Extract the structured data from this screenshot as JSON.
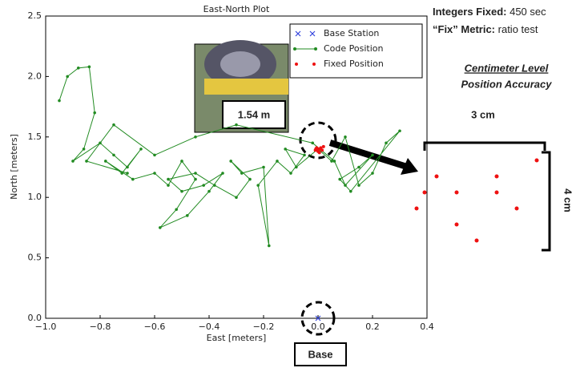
{
  "chart_data": {
    "type": "scatter",
    "title": "East-North Plot",
    "xlabel": "East [meters]",
    "ylabel": "North [meters]",
    "xlim": [
      -1.0,
      0.4
    ],
    "ylim": [
      0.0,
      2.5
    ],
    "xticks": [
      {
        "value": -1.0,
        "label": "−1.0"
      },
      {
        "value": -0.8,
        "label": "−0.8"
      },
      {
        "value": -0.6,
        "label": "−0.6"
      },
      {
        "value": -0.4,
        "label": "−0.4"
      },
      {
        "value": -0.2,
        "label": "−0.2"
      },
      {
        "value": 0.0,
        "label": "0.0"
      },
      0.2,
      0.4
    ],
    "yticks": [
      {
        "value": 0.0,
        "label": "0.0"
      },
      0.5,
      {
        "value": 1.0,
        "label": "1.0"
      },
      1.5,
      {
        "value": 2.0,
        "label": "2.0"
      },
      2.5
    ],
    "legend": "upper right",
    "series": [
      {
        "name": "Base Station",
        "color": "#3344dd",
        "marker": "x",
        "x": [
          0.0
        ],
        "y": [
          0.0
        ]
      },
      {
        "name": "Code Position",
        "color": "#228b22",
        "marker": "line",
        "x": [
          -0.95,
          -0.92,
          -0.88,
          -0.84,
          -0.82,
          -0.86,
          -0.9,
          -0.8,
          -0.75,
          -0.7,
          -0.65,
          -0.72,
          -0.78,
          -0.68,
          -0.6,
          -0.55,
          -0.5,
          -0.45,
          -0.52,
          -0.58,
          -0.48,
          -0.4,
          -0.35,
          -0.42,
          -0.5,
          -0.55,
          -0.45,
          -0.38,
          -0.3,
          -0.25,
          -0.32,
          -0.28,
          -0.2,
          -0.18,
          -0.22,
          -0.15,
          -0.1,
          -0.05,
          -0.12,
          -0.08,
          0.0,
          0.05,
          0.1,
          0.15,
          0.2,
          0.25,
          0.3,
          0.12,
          0.08,
          0.15,
          0.2,
          0.1,
          0.06,
          -0.02,
          -0.3,
          -0.45,
          -0.6,
          -0.75,
          -0.85,
          -0.7
        ],
        "y": [
          1.8,
          2.0,
          2.07,
          2.08,
          1.7,
          1.4,
          1.3,
          1.45,
          1.35,
          1.25,
          1.4,
          1.2,
          1.3,
          1.15,
          1.2,
          1.1,
          1.3,
          1.15,
          0.9,
          0.75,
          0.85,
          1.05,
          1.2,
          1.1,
          1.05,
          1.15,
          1.2,
          1.1,
          1.0,
          1.15,
          1.3,
          1.2,
          1.25,
          0.6,
          1.1,
          1.3,
          1.2,
          1.35,
          1.4,
          1.25,
          1.4,
          1.3,
          1.5,
          1.1,
          1.2,
          1.45,
          1.55,
          1.05,
          1.15,
          1.25,
          1.35,
          1.1,
          1.3,
          1.45,
          1.6,
          1.5,
          1.35,
          1.6,
          1.3,
          1.2
        ]
      },
      {
        "name": "Fixed Position",
        "color": "#ee1111",
        "marker": "dot",
        "x": [
          0.0,
          0.01,
          -0.01,
          0.02,
          0.0,
          0.01,
          -0.005,
          0.015,
          0.005,
          -0.008
        ],
        "y": [
          1.4,
          1.41,
          1.39,
          1.42,
          1.38,
          1.4,
          1.41,
          1.39,
          1.37,
          1.4
        ]
      }
    ],
    "annotations": {
      "integers_label": "Integers Fixed:",
      "integers_value": "450 sec",
      "fix_label": "“Fix”  Metric:",
      "fix_value": "ratio test",
      "accuracy_line1": "Centimeter Level",
      "accuracy_line2": "Position Accuracy",
      "width": "3 cm",
      "height": "4 cm",
      "distance": "1.54 m",
      "base": "Base"
    }
  }
}
